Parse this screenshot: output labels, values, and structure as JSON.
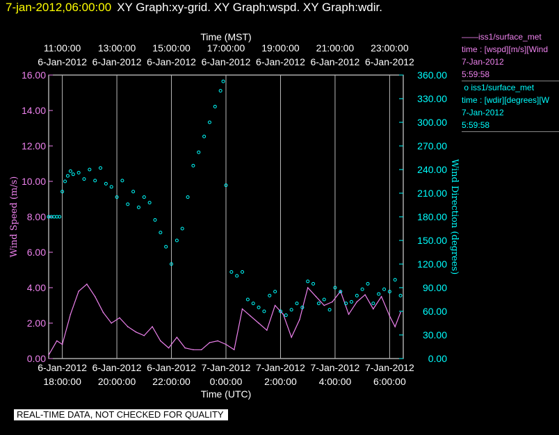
{
  "header": {
    "timestamp": "7-jan-2012,06:00:00",
    "graph_titles": "XY Graph:xy-grid.  XY Graph:wspd.  XY Graph:wdir."
  },
  "legend": {
    "entries": [
      {
        "line1": "iss1/surface_met",
        "line2": "time : [wspd][m/s][Wind",
        "line3": "7-Jan-2012",
        "line4": "5:59:58",
        "marker": "line",
        "color": "#ee82ee"
      },
      {
        "line1": "iss1/surface_met",
        "line2": "time : [wdir][degrees][W",
        "line3": "7-Jan-2012",
        "line4": "5:59:58",
        "marker": "circle",
        "color": "#00ffff"
      }
    ]
  },
  "disclaimer": "REAL-TIME DATA, NOT CHECKED FOR QUALITY",
  "chart_data": {
    "type": "line",
    "title_top": "Time (MST)",
    "xlabel": "Time (UTC)",
    "ylabel_left": "Wind Speed (m/s)",
    "ylabel_right": "Wind Direction (degrees)",
    "xlim_utc_hours": [
      17.5,
      30.5
    ],
    "top_ticks": [
      {
        "t": 18,
        "date": "6-Jan-2012",
        "time": "11:00:00"
      },
      {
        "t": 20,
        "date": "6-Jan-2012",
        "time": "13:00:00"
      },
      {
        "t": 22,
        "date": "6-Jan-2012",
        "time": "15:00:00"
      },
      {
        "t": 24,
        "date": "6-Jan-2012",
        "time": "17:00:00"
      },
      {
        "t": 26,
        "date": "6-Jan-2012",
        "time": "19:00:00"
      },
      {
        "t": 28,
        "date": "6-Jan-2012",
        "time": "21:00:00"
      },
      {
        "t": 30,
        "date": "6-Jan-2012",
        "time": "23:00:00"
      }
    ],
    "bottom_ticks": [
      {
        "t": 18,
        "date": "6-Jan-2012",
        "time": "18:00:00"
      },
      {
        "t": 20,
        "date": "6-Jan-2012",
        "time": "20:00:00"
      },
      {
        "t": 22,
        "date": "6-Jan-2012",
        "time": "22:00:00"
      },
      {
        "t": 24,
        "date": "7-Jan-2012",
        "time": "0:00:00"
      },
      {
        "t": 26,
        "date": "7-Jan-2012",
        "time": "2:00:00"
      },
      {
        "t": 28,
        "date": "7-Jan-2012",
        "time": "4:00:00"
      },
      {
        "t": 30,
        "date": "7-Jan-2012",
        "time": "6:00:00"
      }
    ],
    "left_axis": {
      "min": 0,
      "max": 16,
      "ticks": [
        "0.00",
        "2.00",
        "4.00",
        "6.00",
        "8.00",
        "10.00",
        "12.00",
        "14.00",
        "16.00"
      ],
      "color": "#ee82ee"
    },
    "right_axis": {
      "min": 0,
      "max": 360,
      "ticks": [
        "0.00",
        "30.00",
        "60.00",
        "90.00",
        "120.00",
        "150.00",
        "180.00",
        "210.00",
        "240.00",
        "270.00",
        "300.00",
        "330.00",
        "360.00"
      ],
      "color": "#00ffff"
    },
    "grid_vertical": true,
    "series": [
      {
        "name": "iss1/surface_met wspd",
        "axis": "left",
        "style": "line",
        "color": "#ee82ee",
        "x": [
          17.5,
          17.8,
          18.0,
          18.3,
          18.6,
          18.9,
          19.2,
          19.5,
          19.8,
          20.1,
          20.4,
          20.7,
          21.0,
          21.3,
          21.6,
          21.9,
          22.2,
          22.5,
          22.8,
          23.1,
          23.4,
          23.7,
          24.0,
          24.3,
          24.6,
          24.9,
          25.2,
          25.5,
          25.8,
          26.1,
          26.4,
          26.7,
          27.0,
          27.3,
          27.6,
          27.9,
          28.2,
          28.5,
          28.8,
          29.1,
          29.4,
          29.7,
          30.0,
          30.2,
          30.4
        ],
        "values": [
          0.2,
          1.0,
          0.8,
          2.5,
          3.8,
          4.2,
          3.5,
          2.6,
          2.0,
          2.3,
          1.8,
          1.5,
          1.3,
          1.8,
          1.0,
          0.6,
          1.2,
          0.6,
          0.5,
          0.5,
          0.9,
          1.0,
          0.8,
          0.5,
          2.8,
          2.4,
          2.0,
          1.6,
          3.0,
          2.5,
          1.2,
          2.2,
          4.0,
          3.5,
          3.0,
          3.2,
          3.8,
          2.5,
          3.2,
          3.6,
          2.8,
          3.5,
          2.4,
          1.8,
          2.6
        ]
      },
      {
        "name": "iss1/surface_met wdir",
        "axis": "right",
        "style": "circles",
        "color": "#00ffff",
        "x": [
          17.5,
          17.6,
          17.7,
          17.8,
          17.9,
          18.0,
          18.1,
          18.2,
          18.3,
          18.4,
          18.6,
          18.8,
          19.0,
          19.2,
          19.4,
          19.6,
          19.8,
          20.0,
          20.2,
          20.4,
          20.6,
          20.8,
          21.0,
          21.2,
          21.4,
          21.6,
          21.8,
          22.0,
          22.2,
          22.4,
          22.6,
          22.8,
          23.0,
          23.2,
          23.4,
          23.6,
          23.8,
          23.9,
          24.0,
          24.2,
          24.4,
          24.6,
          24.8,
          25.0,
          25.2,
          25.4,
          25.6,
          25.8,
          26.0,
          26.2,
          26.4,
          26.6,
          26.8,
          27.0,
          27.2,
          27.4,
          27.6,
          27.8,
          28.0,
          28.2,
          28.4,
          28.6,
          28.8,
          29.0,
          29.2,
          29.4,
          29.6,
          29.8,
          30.0,
          30.2,
          30.4
        ],
        "values": [
          180,
          180,
          180,
          180,
          180,
          212,
          225,
          232,
          238,
          234,
          236,
          228,
          240,
          226,
          242,
          222,
          218,
          205,
          226,
          196,
          212,
          192,
          205,
          198,
          176,
          160,
          142,
          120,
          150,
          165,
          205,
          245,
          262,
          282,
          300,
          320,
          340,
          352,
          220,
          110,
          105,
          110,
          75,
          70,
          65,
          60,
          80,
          85,
          60,
          55,
          62,
          70,
          65,
          98,
          95,
          70,
          75,
          62,
          90,
          85,
          70,
          72,
          80,
          88,
          95,
          70,
          82,
          88,
          85,
          100,
          80
        ]
      }
    ]
  }
}
